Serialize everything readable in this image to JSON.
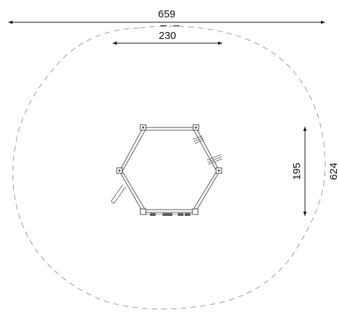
{
  "dimensions": {
    "overall_width": "659",
    "structure_width": "230",
    "structure_depth": "195",
    "overall_depth": "624"
  },
  "colors": {
    "line": "#111111",
    "safety_zone": "#9a9a9a",
    "structure": "#555555",
    "background": "#ffffff"
  }
}
